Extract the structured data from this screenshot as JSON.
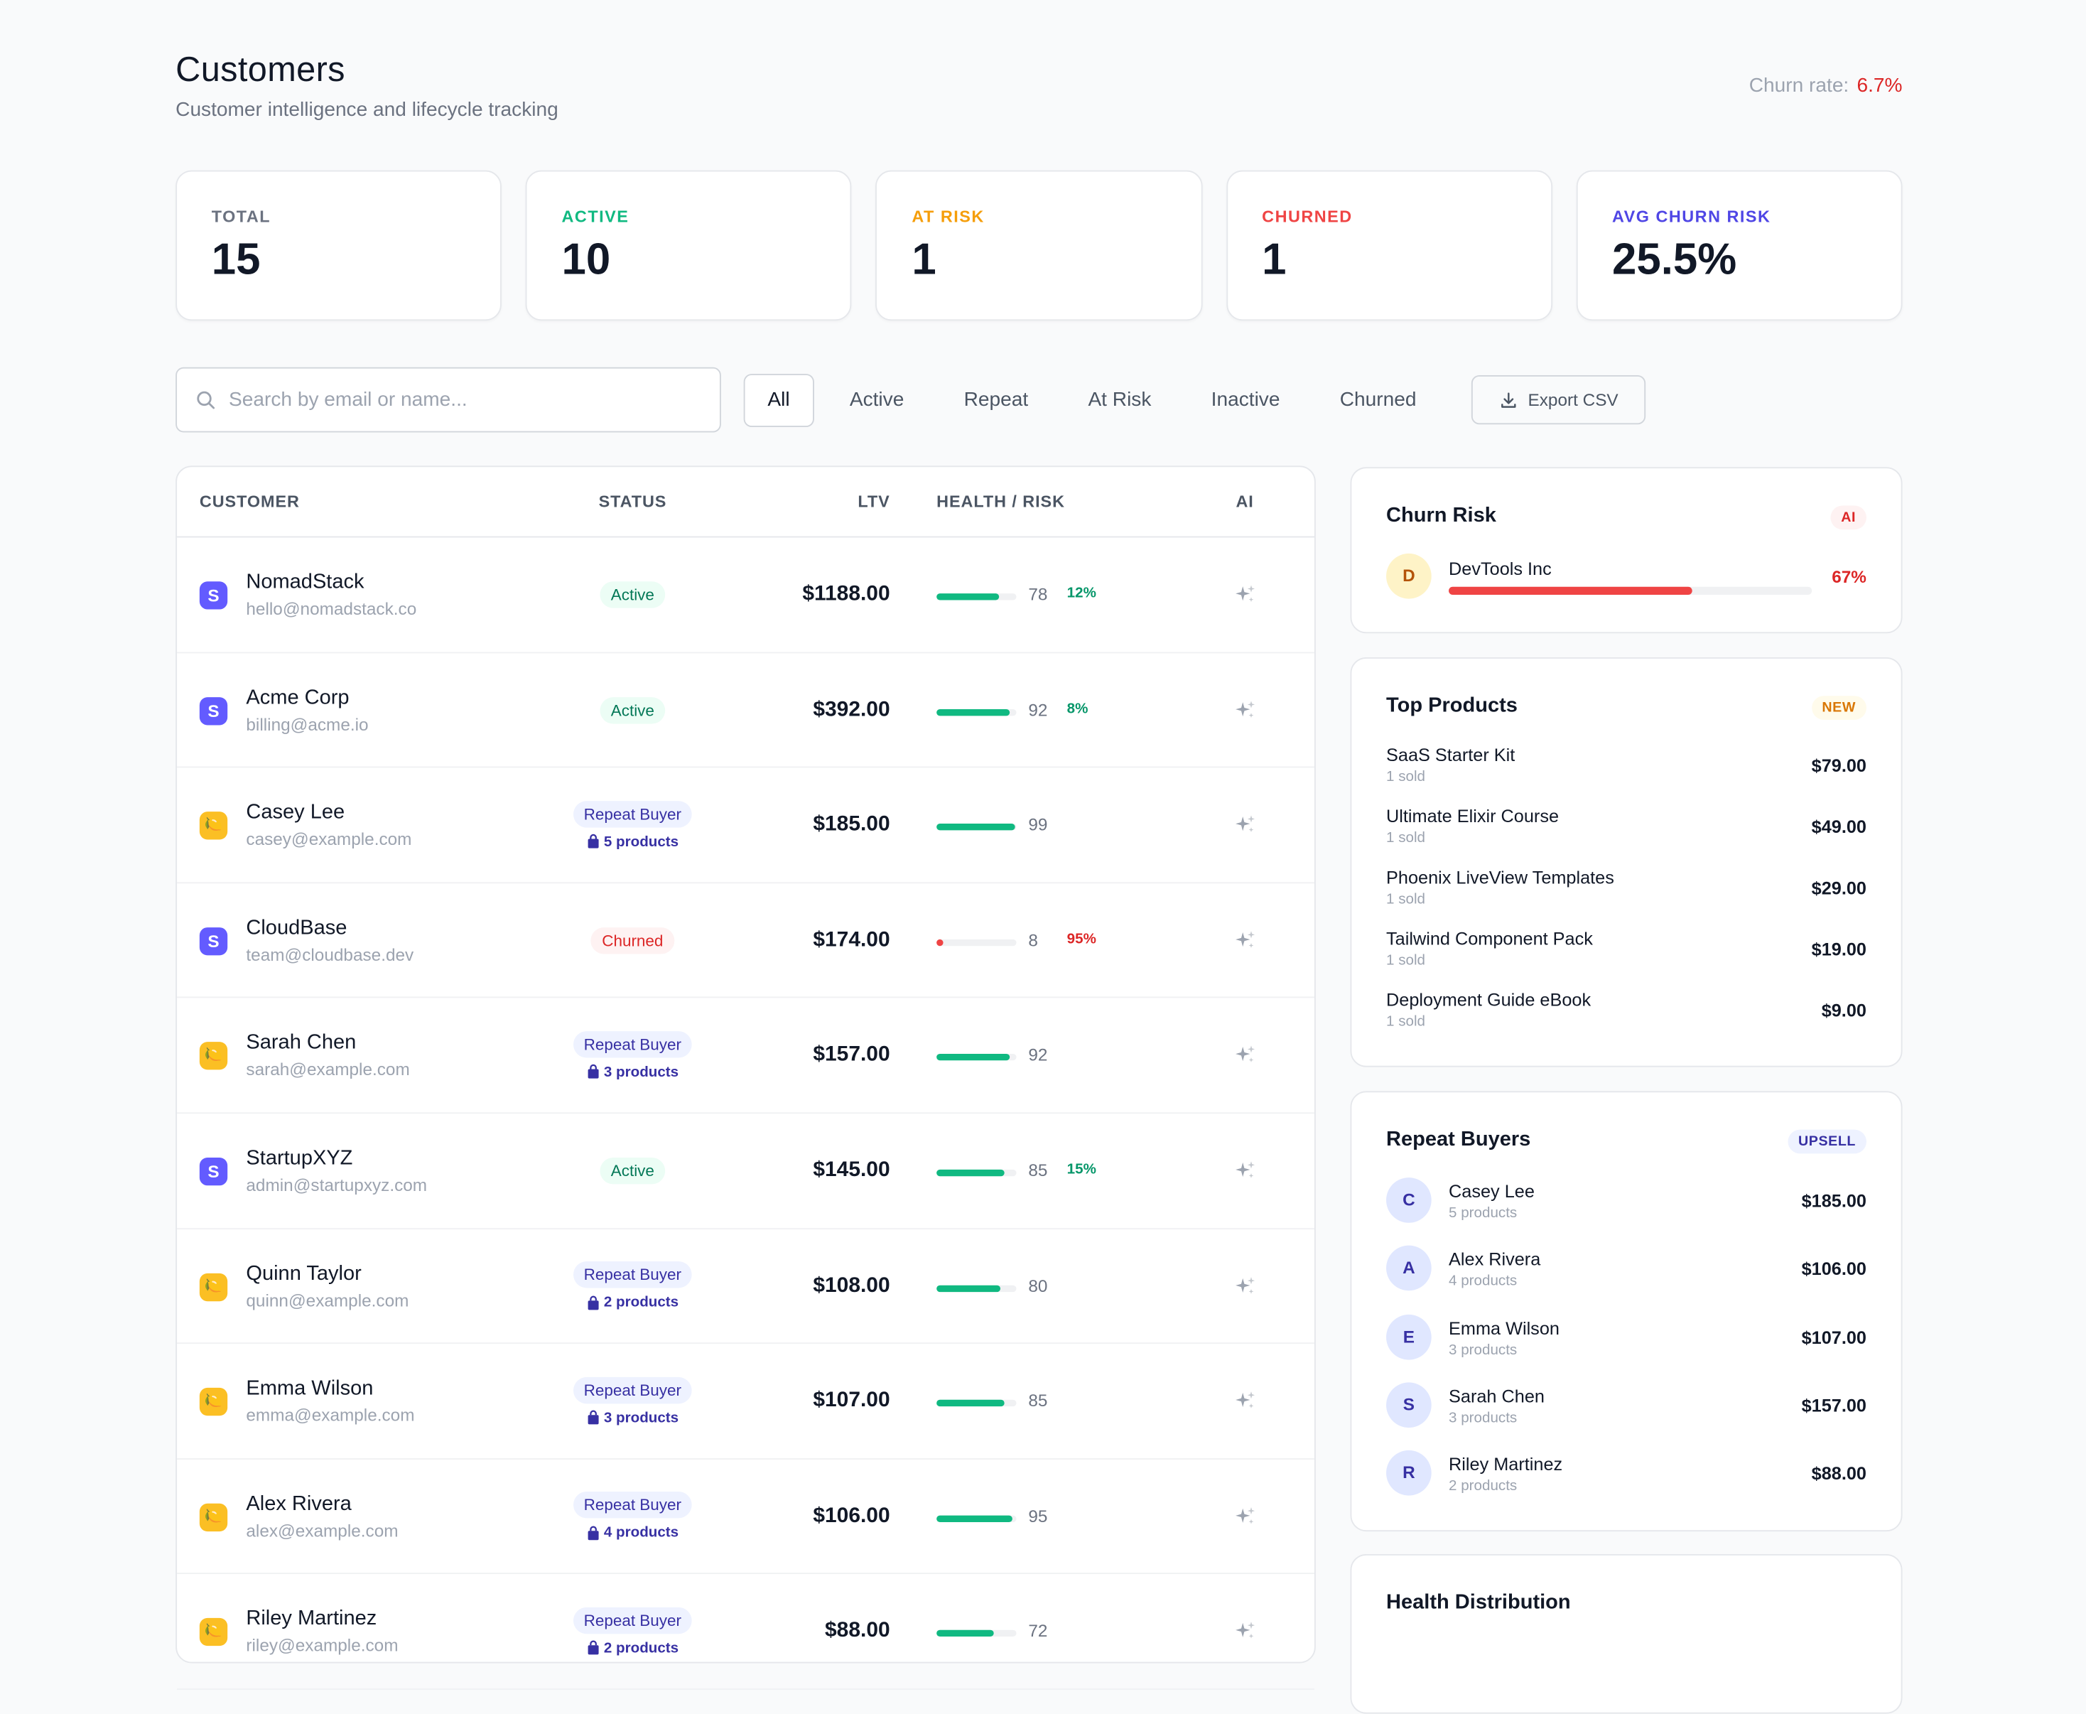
{
  "header": {
    "title": "Customers",
    "subtitle": "Customer intelligence and lifecycle tracking",
    "churn_label": "Churn rate:",
    "churn_value": "6.7%"
  },
  "stats": [
    {
      "label": "TOTAL",
      "value": "15",
      "color": "#6b7280"
    },
    {
      "label": "ACTIVE",
      "value": "10",
      "color": "#10b981"
    },
    {
      "label": "AT RISK",
      "value": "1",
      "color": "#f59e0b"
    },
    {
      "label": "CHURNED",
      "value": "1",
      "color": "#ef4444"
    },
    {
      "label": "AVG CHURN RISK",
      "value": "25.5%",
      "color": "#4f46e5"
    }
  ],
  "search": {
    "placeholder": "Search by email or name..."
  },
  "filters": [
    "All",
    "Active",
    "Repeat",
    "At Risk",
    "Inactive",
    "Churned"
  ],
  "active_filter": "All",
  "export_label": "Export CSV",
  "table": {
    "columns": {
      "customer": "CUSTOMER",
      "status": "STATUS",
      "ltv": "LTV",
      "health": "HEALTH / RISK",
      "ai": "AI"
    },
    "rows": [
      {
        "logo": "S",
        "logo_type": "stripe",
        "name": "NomadStack",
        "email": "hello@nomadstack.co",
        "status": "Active",
        "status_type": "active",
        "products": "",
        "ltv": "$1188.00",
        "health": 78,
        "health_label": "78",
        "risk": "12%",
        "risk_type": "green"
      },
      {
        "logo": "S",
        "logo_type": "stripe",
        "name": "Acme Corp",
        "email": "billing@acme.io",
        "status": "Active",
        "status_type": "active",
        "products": "",
        "ltv": "$392.00",
        "health": 92,
        "health_label": "92",
        "risk": "8%",
        "risk_type": "green"
      },
      {
        "logo": "🍋",
        "logo_type": "lemon",
        "name": "Casey Lee",
        "email": "casey@example.com",
        "status": "Repeat Buyer",
        "status_type": "repeat",
        "products": "5 products",
        "ltv": "$185.00",
        "health": 99,
        "health_label": "99",
        "risk": "",
        "risk_type": "green"
      },
      {
        "logo": "S",
        "logo_type": "stripe",
        "name": "CloudBase",
        "email": "team@cloudbase.dev",
        "status": "Churned",
        "status_type": "churned",
        "products": "",
        "ltv": "$174.00",
        "health": 8,
        "health_label": "8",
        "risk": "95%",
        "risk_type": "red"
      },
      {
        "logo": "🍋",
        "logo_type": "lemon",
        "name": "Sarah Chen",
        "email": "sarah@example.com",
        "status": "Repeat Buyer",
        "status_type": "repeat",
        "products": "3 products",
        "ltv": "$157.00",
        "health": 92,
        "health_label": "92",
        "risk": "",
        "risk_type": "green"
      },
      {
        "logo": "S",
        "logo_type": "stripe",
        "name": "StartupXYZ",
        "email": "admin@startupxyz.com",
        "status": "Active",
        "status_type": "active",
        "products": "",
        "ltv": "$145.00",
        "health": 85,
        "health_label": "85",
        "risk": "15%",
        "risk_type": "green"
      },
      {
        "logo": "🍋",
        "logo_type": "lemon",
        "name": "Quinn Taylor",
        "email": "quinn@example.com",
        "status": "Repeat Buyer",
        "status_type": "repeat",
        "products": "2 products",
        "ltv": "$108.00",
        "health": 80,
        "health_label": "80",
        "risk": "",
        "risk_type": "green"
      },
      {
        "logo": "🍋",
        "logo_type": "lemon",
        "name": "Emma Wilson",
        "email": "emma@example.com",
        "status": "Repeat Buyer",
        "status_type": "repeat",
        "products": "3 products",
        "ltv": "$107.00",
        "health": 85,
        "health_label": "85",
        "risk": "",
        "risk_type": "green"
      },
      {
        "logo": "🍋",
        "logo_type": "lemon",
        "name": "Alex Rivera",
        "email": "alex@example.com",
        "status": "Repeat Buyer",
        "status_type": "repeat",
        "products": "4 products",
        "ltv": "$106.00",
        "health": 95,
        "health_label": "95",
        "risk": "",
        "risk_type": "green"
      },
      {
        "logo": "🍋",
        "logo_type": "lemon",
        "name": "Riley Martinez",
        "email": "riley@example.com",
        "status": "Repeat Buyer",
        "status_type": "repeat",
        "products": "2 products",
        "ltv": "$88.00",
        "health": 72,
        "health_label": "72",
        "risk": "",
        "risk_type": "green"
      }
    ]
  },
  "churn_risk": {
    "title": "Churn Risk",
    "tag": "AI",
    "items": [
      {
        "initial": "D",
        "name": "DevTools Inc",
        "risk": 67,
        "risk_label": "67%"
      }
    ]
  },
  "top_products": {
    "title": "Top Products",
    "tag": "NEW",
    "items": [
      {
        "name": "SaaS Starter Kit",
        "sold": "1 sold",
        "price": "$79.00"
      },
      {
        "name": "Ultimate Elixir Course",
        "sold": "1 sold",
        "price": "$49.00"
      },
      {
        "name": "Phoenix LiveView Templates",
        "sold": "1 sold",
        "price": "$29.00"
      },
      {
        "name": "Tailwind Component Pack",
        "sold": "1 sold",
        "price": "$19.00"
      },
      {
        "name": "Deployment Guide eBook",
        "sold": "1 sold",
        "price": "$9.00"
      }
    ]
  },
  "repeat_buyers": {
    "title": "Repeat Buyers",
    "tag": "UPSELL",
    "items": [
      {
        "initial": "C",
        "name": "Casey Lee",
        "products": "5 products",
        "value": "$185.00"
      },
      {
        "initial": "A",
        "name": "Alex Rivera",
        "products": "4 products",
        "value": "$106.00"
      },
      {
        "initial": "E",
        "name": "Emma Wilson",
        "products": "3 products",
        "value": "$107.00"
      },
      {
        "initial": "S",
        "name": "Sarah Chen",
        "products": "3 products",
        "value": "$157.00"
      },
      {
        "initial": "R",
        "name": "Riley Martinez",
        "products": "2 products",
        "value": "$88.00"
      }
    ]
  },
  "health_distribution": {
    "title": "Health Distribution"
  }
}
